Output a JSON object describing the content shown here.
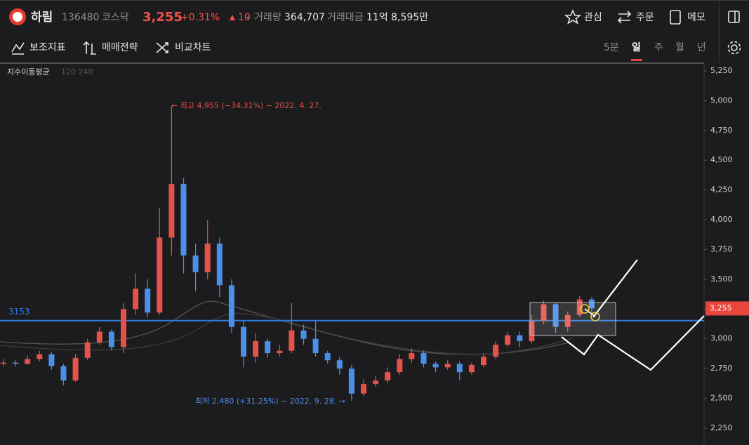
{
  "header": {
    "name": "하림",
    "code": "136480",
    "market": "코스닥",
    "price": "3,255",
    "change_pct": "+0.31%",
    "change": "10",
    "volume_label": "거래량",
    "volume": "364,707",
    "amount_label": "거래대금",
    "amount": "11억 8,595만",
    "buttons": [
      "관심",
      "주문",
      "메모"
    ]
  },
  "toolbar": {
    "tools": [
      "보조지표",
      "매매전략",
      "비교차트"
    ],
    "periods": [
      "5분",
      "일",
      "주",
      "월",
      "년"
    ],
    "active_period": 1
  },
  "chart_data": {
    "type": "candlestick",
    "indicator": "지수이동평균",
    "indicator_params": "120 240",
    "high_note": "← 최고 4,955 (−34.31%) − 2022. 4. 27.",
    "low_note": "최저 2,480 (+31.25%) − 2022. 9. 28. →",
    "open": [
      2790,
      2800,
      2790,
      2830,
      2870,
      2770,
      2650,
      2840,
      2970,
      3060,
      2930,
      3250,
      3420,
      3220,
      3850,
      4300,
      3700,
      3560,
      3800,
      3450,
      3100,
      2850,
      2980,
      2880,
      2900,
      3070,
      3000,
      2880,
      2820,
      2750,
      2540,
      2620,
      2650,
      2720,
      2830,
      2880,
      2790,
      2760,
      2790,
      2720,
      2780,
      2850,
      2950,
      3030,
      2980,
      3150,
      3290,
      3100,
      3200,
      3330
    ],
    "high": [
      2830,
      2820,
      2860,
      2900,
      2890,
      2790,
      2870,
      3000,
      3100,
      3080,
      3300,
      3550,
      3500,
      4100,
      4955,
      4350,
      3800,
      4000,
      3850,
      3500,
      3150,
      3050,
      3000,
      2950,
      3300,
      3120,
      3150,
      2900,
      2850,
      2780,
      2660,
      2690,
      2760,
      2870,
      2920,
      2900,
      2810,
      2820,
      2810,
      2800,
      2880,
      2980,
      3060,
      3060,
      3200,
      3320,
      3300,
      3230,
      3360,
      3350
    ],
    "low": [
      2770,
      2770,
      2780,
      2810,
      2740,
      2610,
      2640,
      2820,
      2950,
      2900,
      2880,
      3200,
      3180,
      3200,
      3700,
      3550,
      3400,
      3500,
      3350,
      3050,
      2760,
      2800,
      2840,
      2850,
      2880,
      2950,
      2850,
      2790,
      2700,
      2480,
      2520,
      2600,
      2630,
      2700,
      2800,
      2760,
      2720,
      2740,
      2650,
      2700,
      2760,
      2830,
      2930,
      2930,
      2960,
      3120,
      3050,
      3060,
      3180,
      3200
    ],
    "close": [
      2800,
      2790,
      2830,
      2870,
      2770,
      2650,
      2840,
      2970,
      3060,
      2930,
      3250,
      3420,
      3220,
      3850,
      4300,
      3700,
      3560,
      3800,
      3450,
      3100,
      2850,
      2980,
      2880,
      2900,
      3070,
      3000,
      2880,
      2820,
      2750,
      2540,
      2620,
      2650,
      2720,
      2830,
      2880,
      2790,
      2760,
      2790,
      2720,
      2780,
      2850,
      2950,
      3030,
      2980,
      3150,
      3290,
      3100,
      3200,
      3330,
      3255
    ],
    "up_color": "#e5524a",
    "down_color": "#4b8fe8",
    "ylim": [
      2108,
      5315
    ],
    "yticks": [
      {
        "value": 2250,
        "label": "2,250"
      },
      {
        "value": 2500,
        "label": "2,500"
      },
      {
        "value": 2750,
        "label": "2,750"
      },
      {
        "value": 3000,
        "label": "3,000"
      },
      {
        "value": 3250,
        "label": "3,250"
      },
      {
        "value": 3500,
        "label": "3,500"
      },
      {
        "value": 3750,
        "label": "3,750"
      },
      {
        "value": 4000,
        "label": "4,000"
      },
      {
        "value": 4250,
        "label": "4,250"
      },
      {
        "value": 4500,
        "label": "4,500"
      },
      {
        "value": 4750,
        "label": "4,750"
      },
      {
        "value": 5000,
        "label": "5,000"
      },
      {
        "value": 5250,
        "label": "5,250"
      }
    ],
    "reference_line": {
      "value": 3153,
      "label": "3153",
      "color": "#2f7de1"
    },
    "last_price": {
      "value": 3255,
      "label": "3,255",
      "color": "#e8453c"
    }
  }
}
